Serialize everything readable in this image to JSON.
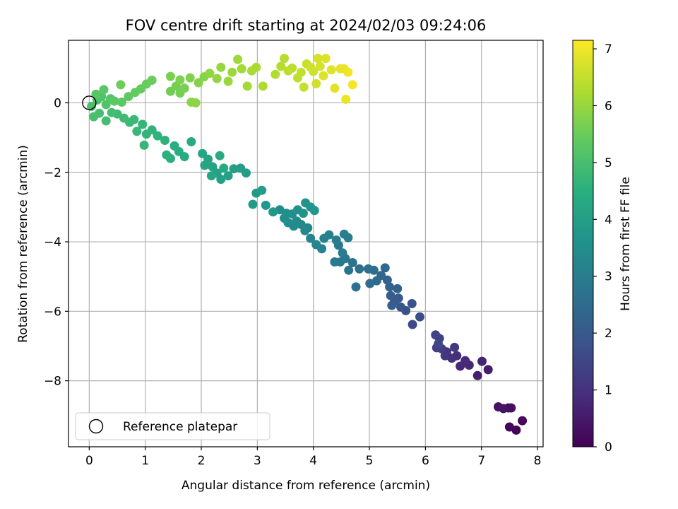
{
  "chart_data": {
    "type": "scatter",
    "title": "FOV centre drift starting at 2024/02/03 09:24:06",
    "xlabel": "Angular distance from reference (arcmin)",
    "ylabel": "Rotation from reference (arcmin)",
    "xlim": [
      -0.37,
      8.1
    ],
    "ylim": [
      -9.9,
      1.8
    ],
    "xticks": [
      0,
      1,
      2,
      3,
      4,
      5,
      6,
      7,
      8
    ],
    "yticks": [
      0,
      -2,
      -4,
      -6,
      -8
    ],
    "grid": true,
    "colormap": "viridis",
    "colorbar": {
      "label": "Hours from first FF file",
      "range": [
        0,
        7.15
      ],
      "ticks": [
        0,
        1,
        2,
        3,
        4,
        5,
        6,
        7
      ]
    },
    "legend": {
      "position": "lower-left",
      "entries": [
        "Reference platepar"
      ]
    },
    "reference_point": {
      "x": 0,
      "y": 0
    },
    "series": [
      {
        "name": "",
        "points": [
          [
            7.62,
            -9.42,
            0.05
          ],
          [
            7.5,
            -9.33,
            0.12
          ],
          [
            7.73,
            -9.15,
            0.18
          ],
          [
            7.48,
            -8.78,
            0.25
          ],
          [
            7.53,
            -8.78,
            0.3
          ],
          [
            7.3,
            -8.75,
            0.35
          ],
          [
            7.39,
            -8.8,
            0.4
          ],
          [
            7.12,
            -7.68,
            0.55
          ],
          [
            6.93,
            -7.85,
            0.62
          ],
          [
            7.01,
            -7.44,
            0.7
          ],
          [
            6.78,
            -7.55,
            0.75
          ],
          [
            6.62,
            -7.58,
            0.8
          ],
          [
            6.71,
            -7.42,
            0.86
          ],
          [
            6.56,
            -7.28,
            0.92
          ],
          [
            6.47,
            -7.35,
            0.98
          ],
          [
            6.38,
            -7.17,
            1.04
          ],
          [
            6.35,
            -7.28,
            1.1
          ],
          [
            6.52,
            -7.04,
            1.18
          ],
          [
            6.29,
            -7.08,
            1.25
          ],
          [
            6.2,
            -7.05,
            1.3
          ],
          [
            6.25,
            -6.78,
            1.38
          ],
          [
            6.18,
            -6.68,
            1.45
          ],
          [
            6.23,
            -6.94,
            1.52
          ],
          [
            5.77,
            -6.38,
            1.6
          ],
          [
            5.9,
            -6.16,
            1.68
          ],
          [
            5.65,
            -5.98,
            1.75
          ],
          [
            5.76,
            -5.78,
            1.82
          ],
          [
            5.56,
            -5.88,
            1.9
          ],
          [
            5.45,
            -5.7,
            1.97
          ],
          [
            5.52,
            -5.62,
            2.03
          ],
          [
            5.38,
            -5.55,
            2.1
          ],
          [
            5.4,
            -5.83,
            2.15
          ],
          [
            5.5,
            -5.35,
            2.2
          ],
          [
            5.36,
            -5.3,
            2.25
          ],
          [
            5.32,
            -5.1,
            2.3
          ],
          [
            5.21,
            -4.97,
            2.35
          ],
          [
            5.28,
            -4.75,
            2.4
          ],
          [
            5.13,
            -5.12,
            2.45
          ],
          [
            5.01,
            -5.2,
            2.5
          ],
          [
            5.08,
            -4.82,
            2.55
          ],
          [
            4.98,
            -4.78,
            2.58
          ],
          [
            4.82,
            -4.78,
            2.62
          ],
          [
            4.76,
            -5.3,
            2.66
          ],
          [
            4.7,
            -4.6,
            2.7
          ],
          [
            4.63,
            -4.82,
            2.74
          ],
          [
            4.57,
            -4.48,
            2.78
          ],
          [
            4.48,
            -4.58,
            2.82
          ],
          [
            4.45,
            -4.1,
            2.86
          ],
          [
            4.38,
            -4.58,
            2.9
          ],
          [
            4.52,
            -4.32,
            2.94
          ],
          [
            4.62,
            -3.88,
            2.98
          ],
          [
            4.55,
            -3.78,
            3.02
          ],
          [
            4.41,
            -3.95,
            3.06
          ],
          [
            4.28,
            -3.8,
            3.1
          ],
          [
            4.19,
            -3.9,
            3.13
          ],
          [
            4.15,
            -4.2,
            3.16
          ],
          [
            4.05,
            -4.08,
            3.2
          ],
          [
            3.95,
            -3.9,
            3.24
          ],
          [
            3.9,
            -3.6,
            3.27
          ],
          [
            3.85,
            -3.68,
            3.3
          ],
          [
            3.78,
            -3.5,
            3.33
          ],
          [
            3.7,
            -3.4,
            3.36
          ],
          [
            3.65,
            -3.55,
            3.4
          ],
          [
            3.55,
            -3.45,
            3.43
          ],
          [
            3.48,
            -3.32,
            3.46
          ],
          [
            3.4,
            -3.08,
            3.5
          ],
          [
            3.52,
            -3.18,
            3.53
          ],
          [
            3.62,
            -3.2,
            3.56
          ],
          [
            3.72,
            -3.08,
            3.6
          ],
          [
            3.82,
            -3.18,
            3.63
          ],
          [
            3.86,
            -2.88,
            3.66
          ],
          [
            3.95,
            -3.0,
            3.7
          ],
          [
            4.02,
            -3.1,
            3.73
          ],
          [
            3.15,
            -2.95,
            3.76
          ],
          [
            3.28,
            -3.14,
            3.8
          ],
          [
            2.92,
            -2.92,
            3.83
          ],
          [
            2.98,
            -2.6,
            3.86
          ],
          [
            3.08,
            -2.52,
            3.9
          ],
          [
            2.8,
            -2.02,
            3.93
          ],
          [
            2.7,
            -1.88,
            3.96
          ],
          [
            2.58,
            -1.9,
            4.0
          ],
          [
            2.48,
            -2.1,
            4.03
          ],
          [
            2.35,
            -2.2,
            4.06
          ],
          [
            2.28,
            -2.02,
            4.1
          ],
          [
            2.2,
            -1.84,
            4.13
          ],
          [
            2.12,
            -1.62,
            4.16
          ],
          [
            2.06,
            -1.8,
            4.2
          ],
          [
            2.02,
            -1.46,
            4.23
          ],
          [
            2.18,
            -2.1,
            4.26
          ],
          [
            2.33,
            -1.52,
            4.3
          ],
          [
            2.4,
            -1.88,
            4.33
          ],
          [
            1.82,
            -1.12,
            4.36
          ],
          [
            1.7,
            -1.55,
            4.4
          ],
          [
            1.6,
            -1.4,
            4.43
          ],
          [
            1.52,
            -1.24,
            4.46
          ],
          [
            1.45,
            -1.6,
            4.5
          ],
          [
            1.38,
            -1.5,
            4.53
          ],
          [
            1.35,
            -1.08,
            4.56
          ],
          [
            1.22,
            -0.95,
            4.6
          ],
          [
            1.12,
            -0.78,
            4.63
          ],
          [
            1.02,
            -0.9,
            4.66
          ],
          [
            0.95,
            -0.62,
            4.7
          ],
          [
            0.98,
            -1.22,
            4.73
          ],
          [
            0.85,
            -0.82,
            4.76
          ],
          [
            0.8,
            -0.48,
            4.8
          ],
          [
            0.72,
            -0.56,
            4.83
          ],
          [
            0.62,
            -0.44,
            4.86
          ],
          [
            0.5,
            -0.32,
            4.9
          ],
          [
            0.4,
            -0.28,
            4.93
          ],
          [
            0.3,
            -0.52,
            4.96
          ],
          [
            0.18,
            -0.3,
            5.0
          ],
          [
            0.08,
            -0.4,
            5.03
          ],
          [
            0.04,
            -0.1,
            5.06
          ],
          [
            0.14,
            0.08,
            5.1
          ],
          [
            0.22,
            0.18,
            5.13
          ],
          [
            0.3,
            -0.05,
            5.16
          ],
          [
            0.38,
            0.12,
            5.2
          ],
          [
            0.12,
            0.25,
            5.23
          ],
          [
            0.26,
            0.38,
            5.26
          ],
          [
            0.45,
            0.05,
            5.3
          ],
          [
            0.58,
            0.02,
            5.33
          ],
          [
            0.7,
            0.18,
            5.36
          ],
          [
            0.82,
            0.3,
            5.4
          ],
          [
            0.92,
            0.4,
            5.43
          ],
          [
            1.02,
            0.54,
            5.46
          ],
          [
            1.12,
            0.65,
            5.5
          ],
          [
            0.56,
            0.52,
            5.53
          ],
          [
            1.45,
            0.33,
            5.56
          ],
          [
            1.55,
            0.48,
            5.6
          ],
          [
            1.62,
            0.28,
            5.63
          ],
          [
            1.7,
            0.42,
            5.66
          ],
          [
            1.45,
            0.76,
            5.7
          ],
          [
            1.62,
            0.66,
            5.73
          ],
          [
            1.8,
            0.72,
            5.76
          ],
          [
            1.95,
            0.58,
            5.8
          ],
          [
            2.05,
            0.75,
            5.83
          ],
          [
            1.82,
            0.02,
            5.86
          ],
          [
            1.9,
            0.0,
            5.9
          ],
          [
            2.15,
            0.85,
            5.93
          ],
          [
            2.28,
            0.7,
            5.96
          ],
          [
            2.35,
            1.02,
            6.0
          ],
          [
            2.48,
            0.62,
            6.03
          ],
          [
            2.55,
            0.88,
            6.06
          ],
          [
            2.65,
            1.25,
            6.1
          ],
          [
            2.72,
            0.98,
            6.13
          ],
          [
            2.82,
            0.48,
            6.16
          ],
          [
            2.9,
            0.92,
            6.2
          ],
          [
            2.98,
            1.02,
            6.23
          ],
          [
            3.1,
            0.48,
            6.26
          ],
          [
            3.32,
            0.82,
            6.3
          ],
          [
            3.42,
            1.05,
            6.33
          ],
          [
            3.48,
            1.28,
            6.36
          ],
          [
            3.55,
            0.92,
            6.4
          ],
          [
            3.62,
            1.0,
            6.43
          ],
          [
            3.72,
            0.72,
            6.46
          ],
          [
            3.78,
            0.88,
            6.5
          ],
          [
            3.83,
            0.45,
            6.53
          ],
          [
            3.88,
            1.12,
            6.56
          ],
          [
            3.95,
            1.02,
            6.6
          ],
          [
            4.0,
            0.9,
            6.63
          ],
          [
            4.05,
            0.55,
            6.66
          ],
          [
            4.08,
            1.28,
            6.7
          ],
          [
            4.12,
            1.05,
            6.73
          ],
          [
            4.18,
            0.78,
            6.76
          ],
          [
            4.22,
            1.28,
            6.8
          ],
          [
            4.32,
            0.95,
            6.83
          ],
          [
            4.38,
            0.42,
            6.86
          ],
          [
            4.48,
            0.98,
            6.9
          ],
          [
            4.55,
            0.98,
            6.93
          ],
          [
            4.58,
            0.1,
            6.96
          ],
          [
            4.62,
            0.88,
            7.0
          ],
          [
            4.7,
            0.52,
            7.05
          ]
        ]
      }
    ]
  }
}
